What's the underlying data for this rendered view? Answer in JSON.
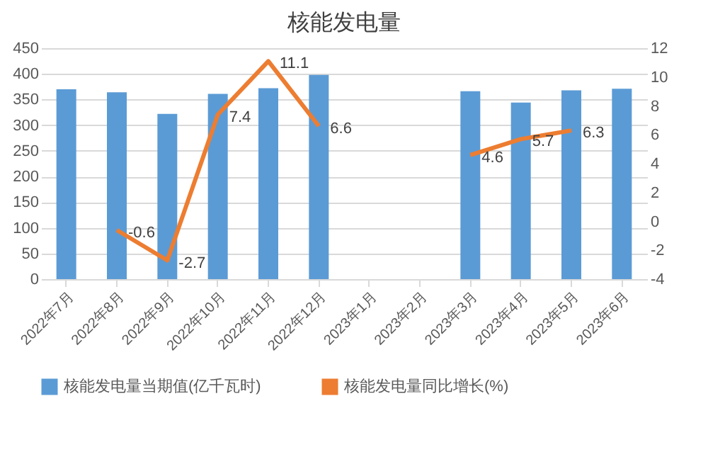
{
  "chart_data": {
    "type": "bar",
    "title": "核能发电量",
    "categories": [
      "2022年7月",
      "2022年8月",
      "2022年9月",
      "2022年10月",
      "2022年11月",
      "2022年12月",
      "2023年1月",
      "2023年2月",
      "2023年3月",
      "2023年4月",
      "2023年5月",
      "2023年6月"
    ],
    "series": [
      {
        "name": "核能发电量当期值(亿千瓦时)",
        "color": "#5b9bd5",
        "values": [
          370,
          364,
          322,
          361,
          372,
          398,
          null,
          null,
          366,
          344,
          368,
          371
        ]
      },
      {
        "name": "核能发电量同比增长(%)",
        "type": "line",
        "axis": "y2",
        "color": "#ed7d31",
        "data_labels": true,
        "values": [
          null,
          -0.6,
          -2.7,
          7.4,
          11.1,
          6.6,
          null,
          null,
          4.6,
          5.7,
          6.3,
          null
        ]
      }
    ],
    "ylim": [
      0,
      450
    ],
    "yticks": [
      0,
      50,
      100,
      150,
      200,
      250,
      300,
      350,
      400,
      450
    ],
    "y2lim": [
      -4,
      12
    ],
    "y2ticks": [
      -4,
      -2,
      0,
      2,
      4,
      6,
      8,
      10,
      12
    ],
    "grid": "y",
    "legend": "bottom"
  }
}
